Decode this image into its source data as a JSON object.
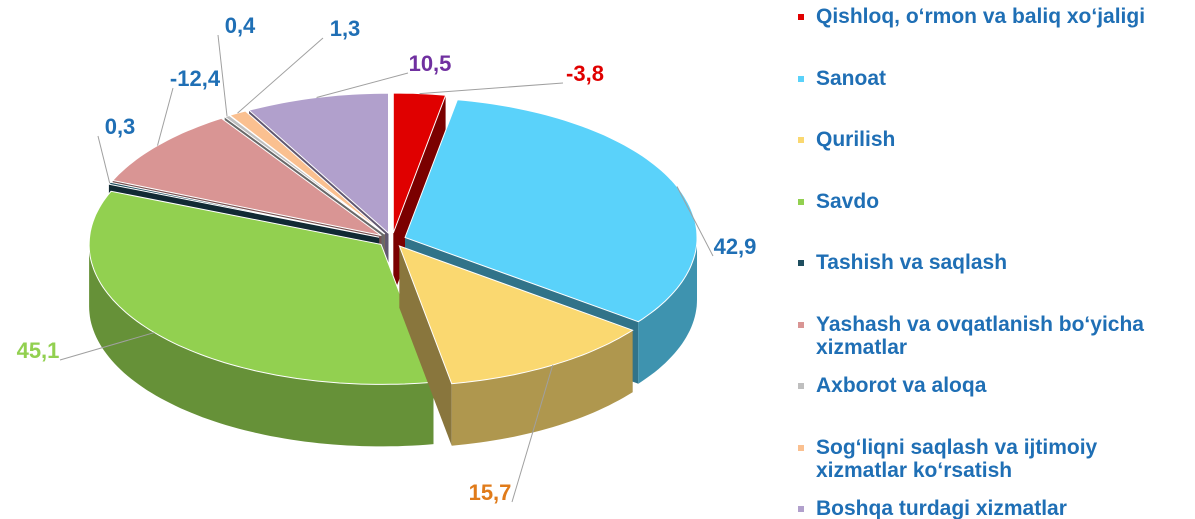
{
  "chart_data": {
    "type": "pie3d",
    "categories": [
      "Qishloq, o‘rmon va baliq xo‘jaligi",
      "Sanoat",
      "Qurilish",
      "Savdo",
      "Tashish va saqlash",
      "Yashash va ovqatlanish bo‘yicha xizmatlar",
      "Axborot va aloqa",
      "Sog‘liqni saqlash va ijtimoiy xizmatlar ko‘rsatish",
      "Boshqa turdagi xizmatlar"
    ],
    "values": [
      -3.8,
      42.9,
      15.7,
      45.1,
      0.3,
      -12.4,
      0.4,
      1.3,
      10.5
    ],
    "value_labels": [
      "-3,8",
      "42,9",
      "15,7",
      "45,1",
      "0,3",
      "-12,4",
      "0,4",
      "1,3",
      "10,5"
    ],
    "colors": [
      "#e00000",
      "#5ad2fa",
      "#fad870",
      "#92d050",
      "#1f4e5f",
      "#d99594",
      "#bfbfbf",
      "#fac090",
      "#b1a0cc"
    ],
    "label_colors": [
      "#e00000",
      "#1f6fb5",
      "#e07b1a",
      "#92d050",
      "#1f6fb5",
      "#1f6fb5",
      "#1f6fb5",
      "#1f6fb5",
      "#7030a0"
    ],
    "legend": "right"
  }
}
